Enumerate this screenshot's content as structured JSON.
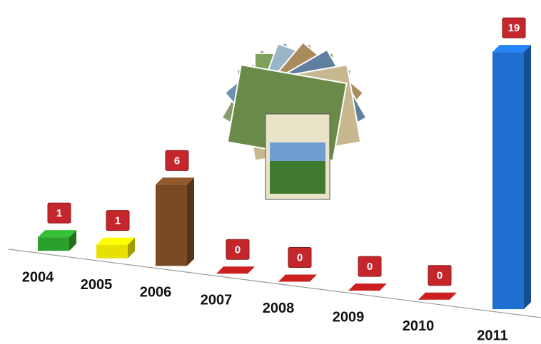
{
  "chart_data": {
    "type": "bar3d",
    "categories": [
      "2004",
      "2005",
      "2006",
      "2007",
      "2008",
      "2009",
      "2010",
      "2011"
    ],
    "values": [
      1,
      1,
      6,
      0,
      0,
      0,
      0,
      19
    ],
    "colors": [
      "#2ca02c",
      "#e8e000",
      "#7a4a25",
      "#cc1f1f",
      "#cc1f1f",
      "#cc1f1f",
      "#cc1f1f",
      "#1f6fd0"
    ],
    "label_color": "#c4262c"
  }
}
